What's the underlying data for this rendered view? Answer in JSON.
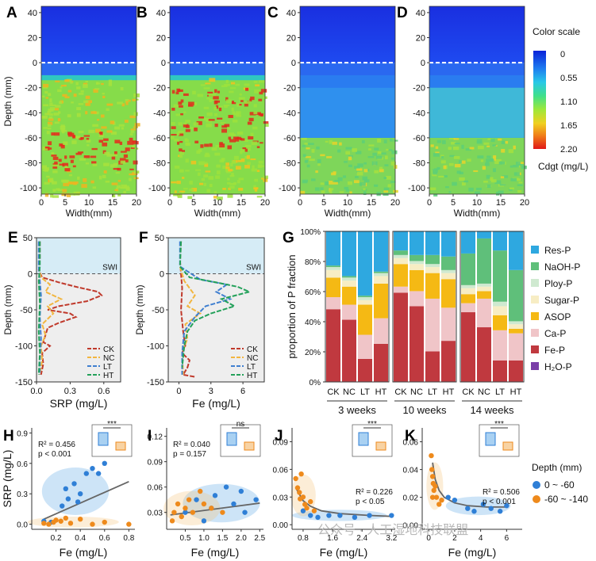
{
  "panel_letters": [
    "A",
    "B",
    "C",
    "D",
    "E",
    "F",
    "G",
    "H",
    "I",
    "J",
    "K"
  ],
  "colorscale": {
    "title": "Color scale",
    "ticks": [
      "0",
      "0.55",
      "1.10",
      "1.65",
      "2.20"
    ],
    "unit": "Cdgt (mg/L)",
    "colors": [
      "#0a22d8",
      "#1e7bf0",
      "#27c8e8",
      "#3fe08a",
      "#9ee83a",
      "#f0d020",
      "#f07a18",
      "#e01818"
    ]
  },
  "heatmaps": {
    "xlabel": "Width(mm)",
    "ylabel": "Depth (mm)",
    "yticks": [
      "40",
      "20",
      "0",
      "-20",
      "-40",
      "-60",
      "-80",
      "-100"
    ],
    "xticks": [
      "0",
      "5",
      "10",
      "15",
      "20"
    ]
  },
  "profile_swi": "SWI",
  "colors": {
    "CK": "#c0392b",
    "NC": "#f2b640",
    "LT": "#3f7fd0",
    "HT": "#23a15a"
  },
  "chart_data": [
    {
      "type": "line",
      "panel": "E",
      "xlabel": "SRP (mg/L)",
      "ylabel": "Depth (mm)",
      "xlim": [
        0,
        0.75
      ],
      "ylim": [
        -150,
        50
      ],
      "xticks": [
        "0.0",
        "0.3",
        "0.6"
      ],
      "yticks": [
        "50",
        "0",
        "-50",
        "-100",
        "-150"
      ],
      "series": [
        {
          "name": "CK",
          "points": [
            [
              0.03,
              45
            ],
            [
              0.03,
              20
            ],
            [
              0.02,
              5
            ],
            [
              0.05,
              -5
            ],
            [
              0.2,
              -12
            ],
            [
              0.35,
              -18
            ],
            [
              0.55,
              -25
            ],
            [
              0.58,
              -30
            ],
            [
              0.45,
              -38
            ],
            [
              0.2,
              -45
            ],
            [
              0.1,
              -50
            ],
            [
              0.3,
              -55
            ],
            [
              0.35,
              -60
            ],
            [
              0.2,
              -68
            ],
            [
              0.1,
              -75
            ],
            [
              0.08,
              -85
            ],
            [
              0.06,
              -95
            ],
            [
              0.12,
              -100
            ],
            [
              0.05,
              -110
            ],
            [
              0.06,
              -125
            ],
            [
              0.04,
              -140
            ]
          ]
        },
        {
          "name": "NC",
          "points": [
            [
              0.02,
              45
            ],
            [
              0.02,
              10
            ],
            [
              0.04,
              -5
            ],
            [
              0.12,
              -15
            ],
            [
              0.08,
              -25
            ],
            [
              0.22,
              -35
            ],
            [
              0.1,
              -45
            ],
            [
              0.15,
              -55
            ],
            [
              0.05,
              -70
            ],
            [
              0.08,
              -85
            ],
            [
              0.04,
              -100
            ],
            [
              0.05,
              -120
            ],
            [
              0.03,
              -140
            ]
          ]
        },
        {
          "name": "LT",
          "points": [
            [
              0.02,
              45
            ],
            [
              0.02,
              10
            ],
            [
              0.03,
              -10
            ],
            [
              0.04,
              -30
            ],
            [
              0.03,
              -60
            ],
            [
              0.04,
              -90
            ],
            [
              0.03,
              -120
            ],
            [
              0.03,
              -140
            ]
          ]
        },
        {
          "name": "HT",
          "points": [
            [
              0.03,
              45
            ],
            [
              0.03,
              10
            ],
            [
              0.02,
              -10
            ],
            [
              0.03,
              -40
            ],
            [
              0.02,
              -80
            ],
            [
              0.03,
              -110
            ],
            [
              0.02,
              -140
            ]
          ]
        }
      ]
    },
    {
      "type": "line",
      "panel": "F",
      "xlabel": "Fe (mg/L)",
      "ylabel": "Depth (mm)",
      "xlim": [
        -1,
        8
      ],
      "ylim": [
        -150,
        50
      ],
      "xticks": [
        "0",
        "3",
        "6"
      ],
      "yticks": [
        "50",
        "0",
        "-50",
        "-100",
        "-150"
      ],
      "series": [
        {
          "name": "CK",
          "points": [
            [
              0.2,
              45
            ],
            [
              0.1,
              20
            ],
            [
              0.2,
              0
            ],
            [
              0.3,
              -20
            ],
            [
              0.2,
              -50
            ],
            [
              0.4,
              -80
            ],
            [
              0.6,
              -100
            ],
            [
              0.3,
              -110
            ],
            [
              1.0,
              -120
            ],
            [
              0.8,
              -130
            ],
            [
              0.4,
              -140
            ],
            [
              1.5,
              -143
            ]
          ]
        },
        {
          "name": "NC",
          "points": [
            [
              0.2,
              45
            ],
            [
              0.1,
              10
            ],
            [
              0.5,
              -10
            ],
            [
              1.5,
              -30
            ],
            [
              0.8,
              -45
            ],
            [
              2.0,
              -55
            ],
            [
              0.6,
              -70
            ],
            [
              0.8,
              -90
            ],
            [
              0.3,
              -110
            ],
            [
              0.4,
              -140
            ]
          ]
        },
        {
          "name": "LT",
          "points": [
            [
              0.1,
              45
            ],
            [
              0.1,
              10
            ],
            [
              2.0,
              -8
            ],
            [
              4.5,
              -15
            ],
            [
              3.5,
              -25
            ],
            [
              4.8,
              -35
            ],
            [
              2.5,
              -45
            ],
            [
              1.5,
              -60
            ],
            [
              0.5,
              -80
            ],
            [
              0.3,
              -110
            ],
            [
              0.3,
              -140
            ]
          ]
        },
        {
          "name": "HT",
          "points": [
            [
              0.2,
              45
            ],
            [
              0.1,
              10
            ],
            [
              1.0,
              -5
            ],
            [
              3.5,
              -12
            ],
            [
              5.5,
              -18
            ],
            [
              6.6,
              -25
            ],
            [
              4.0,
              -35
            ],
            [
              5.2,
              -45
            ],
            [
              3.0,
              -55
            ],
            [
              1.5,
              -65
            ],
            [
              0.8,
              -80
            ],
            [
              0.5,
              -100
            ],
            [
              0.3,
              -130
            ]
          ]
        }
      ]
    },
    {
      "type": "bar",
      "panel": "G",
      "ylabel": "proportion of P fraction",
      "yticks": [
        "0%",
        "20%",
        "40%",
        "60%",
        "80%",
        "100%"
      ],
      "groups": [
        "3 weeks",
        "10 weeks",
        "14 weeks"
      ],
      "categories": [
        "CK",
        "NC",
        "LT",
        "HT"
      ],
      "legend": [
        "Res-P",
        "NaOH-P",
        "Ploy-P",
        "Sugar-P",
        "ASOP",
        "Ca-P",
        "Fe-P",
        "H₂O-P"
      ],
      "legend_colors": [
        "#2ea8e0",
        "#5fbf7a",
        "#cfe9d0",
        "#f7edc4",
        "#f5b914",
        "#f0c5c8",
        "#c0393f",
        "#7a3fa8"
      ],
      "stacks": [
        [
          [
            0,
            48,
            8,
            13,
            5,
            2,
            1,
            23
          ],
          [
            0,
            41,
            10,
            12,
            4,
            2,
            1,
            30
          ],
          [
            0,
            15,
            16,
            20,
            3,
            2,
            1,
            43
          ],
          [
            0,
            25,
            17,
            23,
            5,
            2,
            1,
            27
          ]
        ],
        [
          [
            0,
            59,
            4,
            15,
            4,
            2,
            3,
            13
          ],
          [
            0,
            50,
            10,
            14,
            4,
            2,
            4,
            16
          ],
          [
            0,
            20,
            35,
            17,
            4,
            2,
            6,
            16
          ],
          [
            0,
            27,
            22,
            19,
            4,
            2,
            9,
            17
          ]
        ],
        [
          [
            0,
            46,
            6,
            6,
            4,
            2,
            21,
            15
          ],
          [
            0,
            36,
            19,
            5,
            3,
            2,
            30,
            5
          ],
          [
            0,
            14,
            20,
            10,
            6,
            3,
            34,
            13
          ],
          [
            0,
            14,
            18,
            3,
            3,
            2,
            34,
            26
          ]
        ]
      ]
    },
    {
      "type": "scatter",
      "panel": "H",
      "xlabel": "Fe (mg/L)",
      "ylabel": "SRP (mg/L)",
      "xlim": [
        0,
        0.85
      ],
      "ylim": [
        -0.05,
        0.95
      ],
      "xticks": [
        "0.2",
        "0.4",
        "0.6",
        "0.8"
      ],
      "yticks": [
        "0.0",
        "0.3",
        "0.6",
        "0.9"
      ],
      "stats": [
        "R² = 0.456",
        "p < 0.001"
      ],
      "sig": "***",
      "fit": [
        [
          0.1,
          0.05
        ],
        [
          0.8,
          0.42
        ]
      ],
      "blue": [
        [
          0.1,
          0.03
        ],
        [
          0.16,
          0.02
        ],
        [
          0.25,
          0.18
        ],
        [
          0.3,
          0.25
        ],
        [
          0.35,
          0.4
        ],
        [
          0.4,
          0.3
        ],
        [
          0.45,
          0.5
        ],
        [
          0.5,
          0.55
        ],
        [
          0.55,
          0.5
        ],
        [
          0.6,
          0.6
        ],
        [
          0.38,
          0.22
        ],
        [
          0.28,
          0.35
        ]
      ],
      "orange": [
        [
          0.1,
          0.01
        ],
        [
          0.14,
          0.0
        ],
        [
          0.18,
          0.02
        ],
        [
          0.2,
          0.04
        ],
        [
          0.24,
          0.03
        ],
        [
          0.28,
          0.06
        ],
        [
          0.32,
          0.01
        ],
        [
          0.4,
          0.05
        ],
        [
          0.5,
          0.0
        ],
        [
          0.6,
          0.02
        ],
        [
          0.8,
          0.0
        ]
      ]
    },
    {
      "type": "scatter",
      "panel": "I",
      "xlabel": "Fe (mg/L)",
      "ylabel": "",
      "xlim": [
        0,
        2.6
      ],
      "ylim": [
        0.01,
        0.13
      ],
      "xticks": [
        "0.5",
        "1.0",
        "1.5",
        "2.0",
        "2.5"
      ],
      "yticks": [
        "0.03",
        "0.06",
        "0.09",
        "0.12"
      ],
      "stats": [
        "R² = 0.040",
        "p = 0.157"
      ],
      "sig": "ns",
      "fit": [
        [
          0.1,
          0.027
        ],
        [
          2.5,
          0.041
        ]
      ],
      "blue": [
        [
          0.5,
          0.03
        ],
        [
          0.8,
          0.045
        ],
        [
          1.0,
          0.02
        ],
        [
          1.3,
          0.05
        ],
        [
          1.6,
          0.06
        ],
        [
          1.8,
          0.04
        ],
        [
          2.0,
          0.055
        ],
        [
          2.1,
          0.03
        ],
        [
          2.4,
          0.045
        ],
        [
          1.2,
          0.035
        ]
      ],
      "orange": [
        [
          0.2,
          0.03
        ],
        [
          0.3,
          0.04
        ],
        [
          0.4,
          0.025
        ],
        [
          0.5,
          0.035
        ],
        [
          0.6,
          0.045
        ],
        [
          0.7,
          0.03
        ],
        [
          0.9,
          0.055
        ],
        [
          1.0,
          0.04
        ],
        [
          1.2,
          0.035
        ],
        [
          1.5,
          0.03
        ],
        [
          0.15,
          0.02
        ]
      ]
    },
    {
      "type": "scatter",
      "panel": "J",
      "xlabel": "Fe  (mg/L)",
      "ylabel": "",
      "xlim": [
        0.5,
        3.3
      ],
      "ylim": [
        -0.005,
        0.105
      ],
      "xticks": [
        "0.8",
        "1.6",
        "2.4",
        "3.2"
      ],
      "yticks": [
        "0.00",
        "0.03",
        "0.06",
        "0.09"
      ],
      "stats": [
        "R² = 0.226",
        "p < 0.05"
      ],
      "sig": "***",
      "curve": [
        [
          0.6,
          0.04
        ],
        [
          0.7,
          0.033
        ],
        [
          0.8,
          0.026
        ],
        [
          1.0,
          0.02
        ],
        [
          1.3,
          0.015
        ],
        [
          1.8,
          0.012
        ],
        [
          2.6,
          0.01
        ],
        [
          3.2,
          0.009
        ]
      ],
      "blue": [
        [
          0.8,
          0.015
        ],
        [
          1.0,
          0.01
        ],
        [
          1.2,
          0.008
        ],
        [
          1.5,
          0.01
        ],
        [
          1.8,
          0.01
        ],
        [
          2.2,
          0.008
        ],
        [
          2.6,
          0.01
        ],
        [
          3.2,
          0.01
        ]
      ],
      "orange": [
        [
          0.6,
          0.05
        ],
        [
          0.65,
          0.04
        ],
        [
          0.7,
          0.035
        ],
        [
          0.72,
          0.028
        ],
        [
          0.75,
          0.055
        ],
        [
          0.8,
          0.03
        ],
        [
          0.85,
          0.022
        ],
        [
          0.9,
          0.018
        ],
        [
          1.0,
          0.025
        ],
        [
          1.1,
          0.015
        ]
      ]
    },
    {
      "type": "scatter",
      "panel": "K",
      "xlabel": "Fe  (mg/L)",
      "ylabel": "",
      "xlim": [
        -0.5,
        7.2
      ],
      "ylim": [
        -0.003,
        0.07
      ],
      "xticks": [
        "0",
        "2",
        "4",
        "6"
      ],
      "yticks": [
        "0.00",
        "0.02",
        "0.04",
        "0.06"
      ],
      "stats": [
        "R² = 0.506",
        "p < 0.001"
      ],
      "sig": "***",
      "curve": [
        [
          0.3,
          0.045
        ],
        [
          0.5,
          0.033
        ],
        [
          0.8,
          0.025
        ],
        [
          1.2,
          0.02
        ],
        [
          2,
          0.016
        ],
        [
          3,
          0.014
        ],
        [
          4.5,
          0.013
        ],
        [
          6,
          0.013
        ]
      ],
      "blue": [
        [
          1.5,
          0.02
        ],
        [
          2.0,
          0.018
        ],
        [
          3.0,
          0.012
        ],
        [
          3.5,
          0.01
        ],
        [
          4.2,
          0.015
        ],
        [
          4.8,
          0.012
        ],
        [
          5.5,
          0.01
        ],
        [
          6.0,
          0.014
        ]
      ],
      "orange": [
        [
          0.2,
          0.05
        ],
        [
          0.25,
          0.04
        ],
        [
          0.3,
          0.035
        ],
        [
          0.35,
          0.03
        ],
        [
          0.4,
          0.025
        ],
        [
          0.5,
          0.028
        ],
        [
          0.6,
          0.02
        ],
        [
          0.8,
          0.015
        ],
        [
          1.0,
          0.018
        ],
        [
          0.3,
          0.02
        ]
      ]
    }
  ],
  "legend_depth": {
    "title": "Depth (mm)",
    "items": [
      "0 ~ -60",
      "-60 ~ -140"
    ]
  },
  "watermark": "公众号 · 人工湿地科技联盟"
}
